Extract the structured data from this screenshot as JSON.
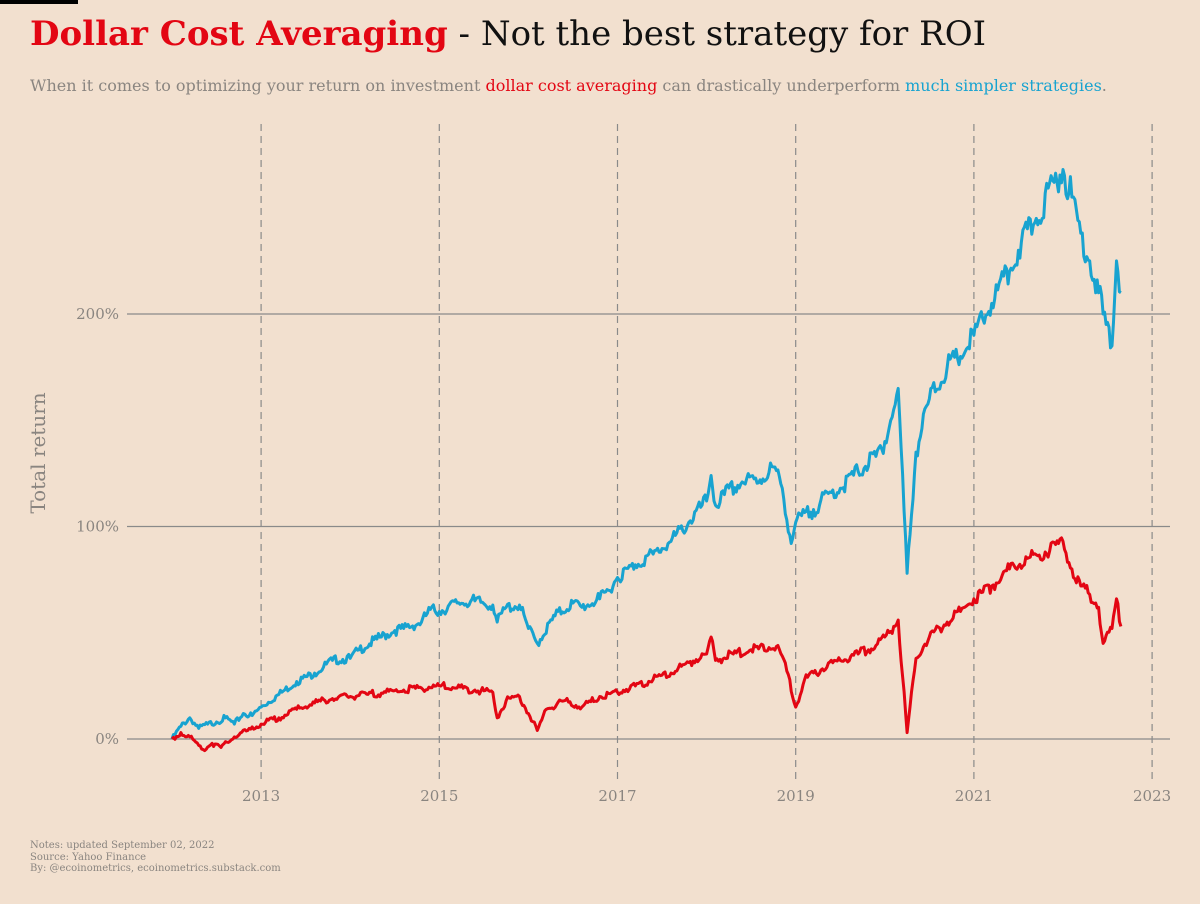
{
  "header": {
    "title_highlight": "Dollar Cost Averaging",
    "title_rest": " - Not the best strategy for ROI",
    "subtitle_part1": "When it comes to optimizing your return on investment ",
    "subtitle_red": "dollar cost averaging",
    "subtitle_part2": " can drastically underperform ",
    "subtitle_blue": "much simpler strategies",
    "subtitle_end": "."
  },
  "notes": {
    "line1": "Notes: updated September 02, 2022",
    "line2": "Source: Yahoo Finance",
    "line3": "By: @ecoinometrics, ecoinometrics.substack.com"
  },
  "colors": {
    "dca": "#e30613",
    "simple": "#18a3d0",
    "background": "#f2e0cf",
    "grid": "#8a8a8a",
    "text_muted": "#8a8580"
  },
  "chart_data": {
    "type": "line",
    "ylabel": "Total return",
    "xlabel": "",
    "x_ticks": [
      "2013",
      "2015",
      "2017",
      "2019",
      "2021",
      "2023"
    ],
    "y_ticks": [
      "0%",
      "100%",
      "200%"
    ],
    "y_tick_values": [
      0,
      100,
      200
    ],
    "xlim": [
      2012.0,
      2023.2
    ],
    "ylim": [
      -20,
      285
    ],
    "grid": "horizontal solid at y ticks, vertical dashed at x ticks",
    "series": [
      {
        "color": "#18a3d0",
        "x": [
          2012.0,
          2012.1,
          2012.2,
          2012.3,
          2012.4,
          2012.5,
          2012.6,
          2012.7,
          2012.8,
          2012.9,
          2013.0,
          2013.2,
          2013.4,
          2013.6,
          2013.8,
          2014.0,
          2014.1,
          2014.3,
          2014.5,
          2014.6,
          2014.8,
          2014.9,
          2015.0,
          2015.2,
          2015.4,
          2015.6,
          2015.65,
          2015.75,
          2015.9,
          2016.0,
          2016.1,
          2016.3,
          2016.5,
          2016.6,
          2016.8,
          2016.9,
          2017.0,
          2017.2,
          2017.4,
          2017.6,
          2017.8,
          2018.0,
          2018.05,
          2018.1,
          2018.2,
          2018.4,
          2018.6,
          2018.75,
          2018.85,
          2018.95,
          2019.0,
          2019.2,
          2019.4,
          2019.5,
          2019.7,
          2019.9,
          2020.0,
          2020.1,
          2020.15,
          2020.25,
          2020.35,
          2020.5,
          2020.7,
          2020.85,
          2021.0,
          2021.2,
          2021.4,
          2021.5,
          2021.7,
          2021.9,
          2022.0,
          2022.1,
          2022.2,
          2022.3,
          2022.4,
          2022.45,
          2022.55,
          2022.6,
          2022.65
        ],
        "y": [
          0,
          6,
          10,
          5,
          7,
          8,
          10,
          7,
          12,
          11,
          15,
          21,
          27,
          31,
          37,
          38,
          42,
          47,
          51,
          52,
          55,
          61,
          60,
          64,
          65,
          63,
          55,
          62,
          63,
          52,
          45,
          58,
          64,
          62,
          66,
          70,
          76,
          82,
          87,
          93,
          102,
          112,
          124,
          110,
          115,
          121,
          122,
          128,
          118,
          92,
          102,
          108,
          116,
          118,
          126,
          133,
          140,
          155,
          165,
          78,
          135,
          160,
          175,
          180,
          190,
          205,
          220,
          230,
          245,
          262,
          268,
          255,
          238,
          225,
          210,
          200,
          185,
          225,
          210
        ]
      },
      {
        "color": "#e30613",
        "x": [
          2012.0,
          2012.1,
          2012.2,
          2012.3,
          2012.35,
          2012.45,
          2012.55,
          2012.7,
          2012.85,
          2013.0,
          2013.2,
          2013.4,
          2013.6,
          2013.8,
          2014.0,
          2014.2,
          2014.4,
          2014.6,
          2014.8,
          2015.0,
          2015.2,
          2015.4,
          2015.6,
          2015.65,
          2015.75,
          2015.9,
          2016.0,
          2016.1,
          2016.2,
          2016.4,
          2016.6,
          2016.8,
          2017.0,
          2017.2,
          2017.4,
          2017.6,
          2017.8,
          2018.0,
          2018.05,
          2018.1,
          2018.3,
          2018.5,
          2018.7,
          2018.8,
          2018.9,
          2019.0,
          2019.1,
          2019.3,
          2019.5,
          2019.7,
          2019.9,
          2020.0,
          2020.1,
          2020.15,
          2020.25,
          2020.35,
          2020.5,
          2020.7,
          2020.85,
          2021.0,
          2021.2,
          2021.4,
          2021.6,
          2021.8,
          2021.95,
          2022.0,
          2022.1,
          2022.2,
          2022.3,
          2022.4,
          2022.45,
          2022.55,
          2022.6,
          2022.65
        ],
        "y": [
          0,
          3,
          1,
          -3,
          -5,
          -2,
          -4,
          1,
          4,
          7,
          10,
          14,
          17,
          19,
          20,
          21,
          22,
          23,
          24,
          25,
          24,
          23,
          22,
          10,
          18,
          20,
          12,
          4,
          14,
          18,
          15,
          20,
          22,
          25,
          28,
          31,
          36,
          40,
          48,
          37,
          40,
          42,
          43,
          44,
          32,
          15,
          28,
          33,
          37,
          40,
          44,
          48,
          53,
          56,
          3,
          38,
          48,
          55,
          60,
          66,
          72,
          80,
          85,
          88,
          92,
          93,
          80,
          72,
          68,
          62,
          45,
          52,
          66,
          53
        ]
      }
    ]
  }
}
